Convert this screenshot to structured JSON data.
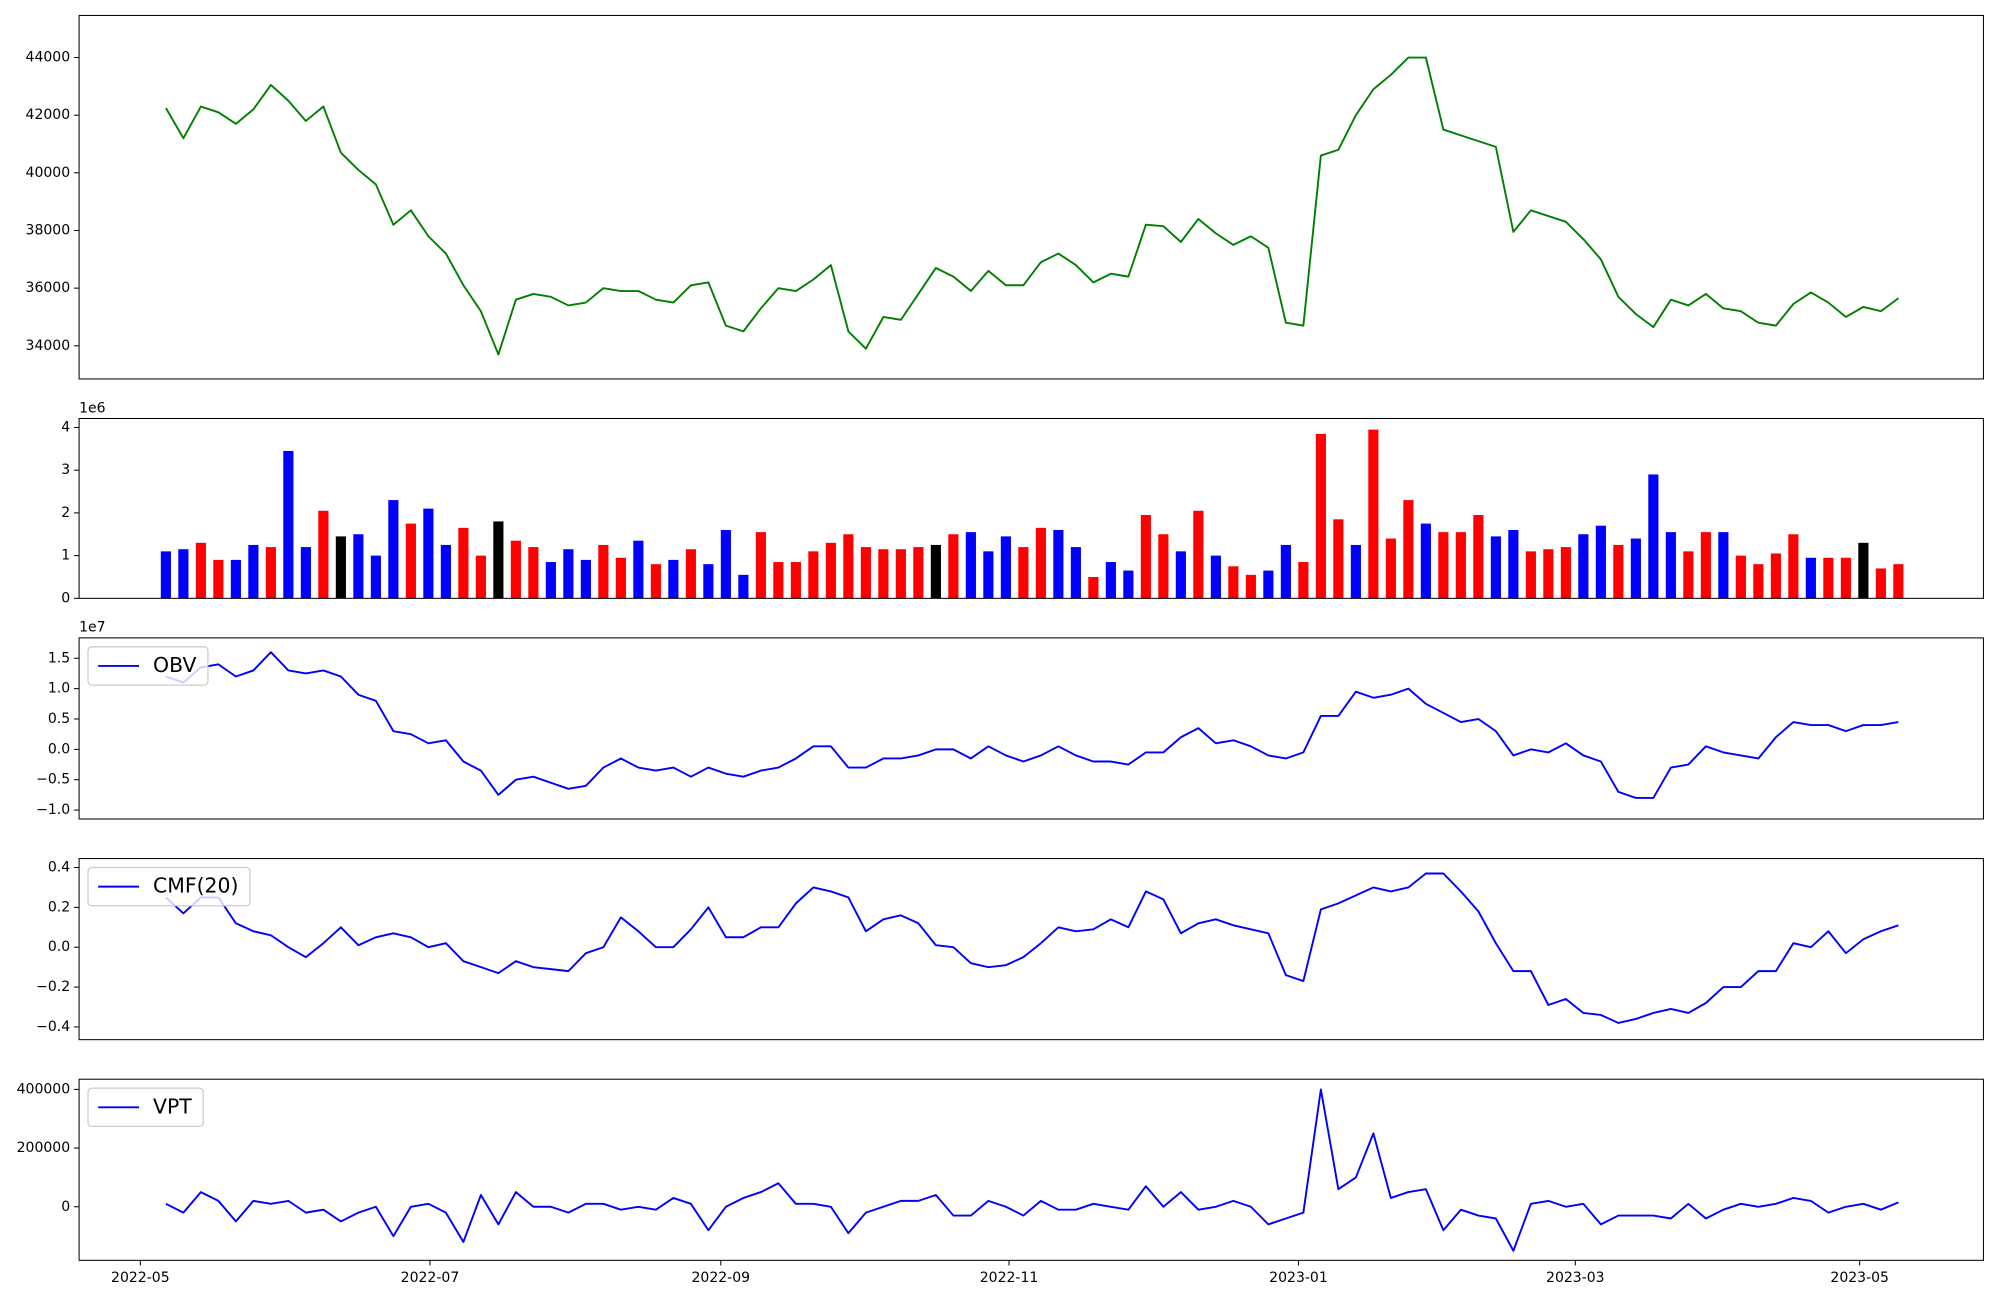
{
  "chart_data": [
    {
      "type": "line",
      "color": "#008000",
      "values": [
        42250,
        41200,
        42300,
        42100,
        41700,
        42200,
        43050,
        42500,
        41800,
        42300,
        40700,
        40100,
        39600,
        38200,
        38700,
        37800,
        37200,
        36100,
        35200,
        33700,
        35600,
        35800,
        35700,
        35400,
        35500,
        36000,
        35900,
        35900,
        35600,
        35500,
        36100,
        36200,
        34700,
        34500,
        35300,
        36000,
        35900,
        36300,
        36800,
        34500,
        33900,
        35000,
        34900,
        35800,
        36700,
        36400,
        35900,
        36600,
        36100,
        36100,
        36900,
        37200,
        36800,
        36200,
        36500,
        36400,
        38200,
        38150,
        37600,
        38400,
        37900,
        37500,
        37800,
        37400,
        34800,
        34700,
        40600,
        40800,
        42000,
        42900,
        43400,
        44000,
        44000,
        41500,
        41300,
        41100,
        40900,
        37950,
        38700,
        38500,
        38300,
        37700,
        37000,
        35700,
        35100,
        34650,
        35600,
        35400,
        35800,
        35300,
        35200,
        34800,
        34700,
        35450,
        35850,
        35500,
        35000,
        35350,
        35200,
        35650
      ],
      "xlim": [
        -4.96,
        103.86
      ],
      "ylim": [
        32850,
        45460
      ],
      "yticks": [
        34000,
        36000,
        38000,
        40000,
        42000,
        44000
      ]
    },
    {
      "type": "bar",
      "offset_text": "1e6",
      "values": [
        1.1,
        1.15,
        1.3,
        0.9,
        0.9,
        1.25,
        1.2,
        3.45,
        1.2,
        2.05,
        1.45,
        1.5,
        1.0,
        2.3,
        1.75,
        2.1,
        1.25,
        1.65,
        1.0,
        1.8,
        1.35,
        1.2,
        0.85,
        1.15,
        0.9,
        1.25,
        0.95,
        1.35,
        0.8,
        0.9,
        1.15,
        0.8,
        1.6,
        0.55,
        1.55,
        0.85,
        0.85,
        1.1,
        1.3,
        1.5,
        1.2,
        1.15,
        1.15,
        1.2,
        1.25,
        1.5,
        1.55,
        1.1,
        1.45,
        1.2,
        1.65,
        1.6,
        1.2,
        0.5,
        0.85,
        0.65,
        1.95,
        1.5,
        1.1,
        2.05,
        1.0,
        0.75,
        0.55,
        0.65,
        1.25,
        0.85,
        3.85,
        1.85,
        1.25,
        3.95,
        1.4,
        2.3,
        1.75,
        1.55,
        1.55,
        1.95,
        1.45,
        1.6,
        1.1,
        1.15,
        1.2,
        1.5,
        1.7,
        1.25,
        1.4,
        2.9,
        1.55,
        1.1,
        1.55,
        1.55,
        1.0,
        0.8,
        1.05,
        1.5,
        0.95,
        0.95,
        0.95,
        1.3,
        0.7,
        0.8
      ],
      "colors": [
        "blue",
        "blue",
        "red",
        "red",
        "blue",
        "blue",
        "red",
        "blue",
        "blue",
        "red",
        "black",
        "blue",
        "blue",
        "blue",
        "red",
        "blue",
        "blue",
        "red",
        "red",
        "black",
        "red",
        "red",
        "blue",
        "blue",
        "blue",
        "red",
        "red",
        "blue",
        "red",
        "blue",
        "red",
        "blue",
        "blue",
        "blue",
        "red",
        "red",
        "red",
        "red",
        "red",
        "red",
        "red",
        "red",
        "red",
        "red",
        "black",
        "red",
        "blue",
        "blue",
        "blue",
        "red",
        "red",
        "blue",
        "blue",
        "red",
        "blue",
        "blue",
        "red",
        "red",
        "blue",
        "red",
        "blue",
        "red",
        "red",
        "blue",
        "blue",
        "red",
        "red",
        "red",
        "blue",
        "red",
        "red",
        "red",
        "blue",
        "red",
        "red",
        "red",
        "blue",
        "blue",
        "red",
        "red",
        "red",
        "blue",
        "blue",
        "red",
        "blue",
        "blue",
        "blue",
        "red",
        "red",
        "blue",
        "red",
        "red",
        "red",
        "red",
        "blue",
        "red",
        "red",
        "black",
        "red",
        "red"
      ],
      "xlim": [
        -4.96,
        103.86
      ],
      "ylim": [
        0,
        4.21
      ],
      "yticks": [
        0,
        1,
        2,
        3,
        4
      ]
    },
    {
      "type": "line",
      "offset_text": "1e7",
      "legend": "upper left",
      "series": [
        {
          "name": "OBV",
          "color": "#0000ff",
          "values": [
            1.2,
            1.1,
            1.35,
            1.4,
            1.2,
            1.3,
            1.6,
            1.3,
            1.25,
            1.3,
            1.2,
            0.9,
            0.8,
            0.3,
            0.25,
            0.1,
            0.15,
            -0.2,
            -0.35,
            -0.75,
            -0.5,
            -0.45,
            -0.55,
            -0.65,
            -0.6,
            -0.3,
            -0.15,
            -0.3,
            -0.35,
            -0.3,
            -0.45,
            -0.3,
            -0.4,
            -0.45,
            -0.35,
            -0.3,
            -0.15,
            0.05,
            0.05,
            -0.3,
            -0.3,
            -0.15,
            -0.15,
            -0.1,
            0.0,
            0.0,
            -0.15,
            0.05,
            -0.1,
            -0.2,
            -0.1,
            0.05,
            -0.1,
            -0.2,
            -0.2,
            -0.25,
            -0.05,
            -0.05,
            0.2,
            0.35,
            0.1,
            0.15,
            0.05,
            -0.1,
            -0.15,
            -0.05,
            0.55,
            0.55,
            0.95,
            0.85,
            0.9,
            1.0,
            0.75,
            0.6,
            0.45,
            0.5,
            0.3,
            -0.1,
            0.0,
            -0.05,
            0.1,
            -0.1,
            -0.2,
            -0.7,
            -0.8,
            -0.8,
            -0.3,
            -0.25,
            0.05,
            -0.05,
            -0.1,
            -0.15,
            0.2,
            0.45,
            0.4,
            0.4,
            0.3,
            0.4,
            0.4,
            0.45
          ]
        }
      ],
      "xlim": [
        -4.96,
        103.86
      ],
      "ylim": [
        -1.147,
        1.836
      ],
      "yticks": [
        {
          "value": -1,
          "label": "−1.0"
        },
        {
          "value": -0.5,
          "label": "−0.5"
        },
        {
          "value": 0,
          "label": "0.0"
        },
        0.5,
        {
          "value": 1,
          "label": "1.0"
        },
        1.5
      ]
    },
    {
      "type": "line",
      "legend": "upper left",
      "series": [
        {
          "name": "CMF(20)",
          "color": "#0000ff",
          "values": [
            0.25,
            0.17,
            0.25,
            0.25,
            0.12,
            0.08,
            0.06,
            0.0,
            -0.05,
            0.02,
            0.1,
            0.01,
            0.05,
            0.07,
            0.05,
            0.0,
            0.02,
            -0.07,
            -0.1,
            -0.13,
            -0.07,
            -0.1,
            -0.11,
            -0.12,
            -0.03,
            0.0,
            0.15,
            0.08,
            0.0,
            0.0,
            0.09,
            0.2,
            0.05,
            0.05,
            0.1,
            0.1,
            0.22,
            0.3,
            0.28,
            0.25,
            0.08,
            0.14,
            0.16,
            0.12,
            0.01,
            0.0,
            -0.08,
            -0.1,
            -0.09,
            -0.05,
            0.02,
            0.1,
            0.08,
            0.09,
            0.14,
            0.1,
            0.28,
            0.24,
            0.07,
            0.12,
            0.14,
            0.11,
            0.09,
            0.07,
            -0.14,
            -0.17,
            0.19,
            0.22,
            0.26,
            0.3,
            0.28,
            0.3,
            0.37,
            0.37,
            0.28,
            0.18,
            0.02,
            -0.12,
            -0.12,
            -0.29,
            -0.26,
            -0.33,
            -0.34,
            -0.38,
            -0.36,
            -0.33,
            -0.31,
            -0.33,
            -0.28,
            -0.2,
            -0.2,
            -0.12,
            -0.12,
            0.02,
            0.0,
            0.08,
            -0.03,
            0.04,
            0.08,
            0.11
          ]
        }
      ],
      "xlim": [
        -4.96,
        103.86
      ],
      "ylim": [
        -0.464,
        0.445
      ],
      "yticks": [
        {
          "value": -0.4,
          "label": "−0.4"
        },
        {
          "value": -0.2,
          "label": "−0.2"
        },
        {
          "value": 0,
          "label": "0.0"
        },
        0.2,
        0.4
      ]
    },
    {
      "type": "line",
      "legend": "upper left",
      "series": [
        {
          "name": "VPT",
          "color": "#0000ff",
          "values": [
            10000,
            -20000,
            50000,
            20000,
            -50000,
            20000,
            10000,
            20000,
            -20000,
            -10000,
            -50000,
            -20000,
            0,
            -100000,
            0,
            10000,
            -20000,
            -120000,
            40000,
            -60000,
            50000,
            0,
            0,
            -20000,
            10000,
            10000,
            -10000,
            0,
            -10000,
            30000,
            10000,
            -80000,
            0,
            30000,
            50000,
            80000,
            10000,
            10000,
            0,
            -90000,
            -20000,
            0,
            20000,
            20000,
            40000,
            -30000,
            -30000,
            20000,
            0,
            -30000,
            20000,
            -10000,
            -10000,
            10000,
            0,
            -10000,
            70000,
            0,
            50000,
            -10000,
            0,
            20000,
            0,
            -60000,
            -40000,
            -20000,
            400000,
            60000,
            100000,
            250000,
            30000,
            50000,
            60000,
            -80000,
            -10000,
            -30000,
            -40000,
            -150000,
            10000,
            20000,
            0,
            10000,
            -60000,
            -30000,
            -30000,
            -30000,
            -40000,
            10000,
            -40000,
            -10000,
            10000,
            0,
            10000,
            30000,
            20000,
            -20000,
            0,
            10000,
            -10000,
            15000
          ]
        }
      ],
      "xlim": [
        -4.96,
        103.86
      ],
      "ylim": [
        -182600,
        434800
      ],
      "yticks": [
        0,
        200000,
        400000
      ],
      "xticks": [
        {
          "value": -1.46,
          "label": "2022-05"
        },
        {
          "value": 15.09,
          "label": "2022-07"
        },
        {
          "value": 31.71,
          "label": "2022-09"
        },
        {
          "value": 48.18,
          "label": "2022-11"
        },
        {
          "value": 64.72,
          "label": "2023-01"
        },
        {
          "value": 80.54,
          "label": "2023-03"
        },
        {
          "value": 96.79,
          "label": "2023-05"
        }
      ]
    }
  ]
}
